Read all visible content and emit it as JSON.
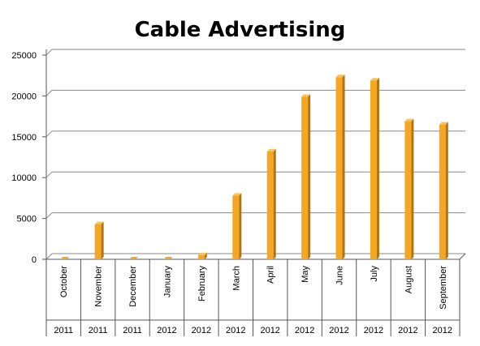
{
  "chart_data": {
    "type": "bar",
    "title": "Cable Advertising",
    "xlabel": "",
    "ylabel": "",
    "ylim": [
      0,
      25000
    ],
    "yticks": [
      0,
      5000,
      10000,
      15000,
      20000,
      25000
    ],
    "grid": true,
    "legend": "none",
    "categories": [
      "October",
      "November",
      "December",
      "January",
      "February",
      "March",
      "April",
      "May",
      "June",
      "July",
      "August",
      "September"
    ],
    "years": [
      "2011",
      "2011",
      "2011",
      "2012",
      "2012",
      "2012",
      "2012",
      "2012",
      "2012",
      "2012",
      "2012",
      "2012"
    ],
    "values": [
      0,
      4300,
      0,
      0,
      500,
      7800,
      13200,
      19900,
      22300,
      21900,
      16900,
      16500
    ],
    "bar_color": "#F5A623",
    "bar_side_color": "#B07410"
  }
}
